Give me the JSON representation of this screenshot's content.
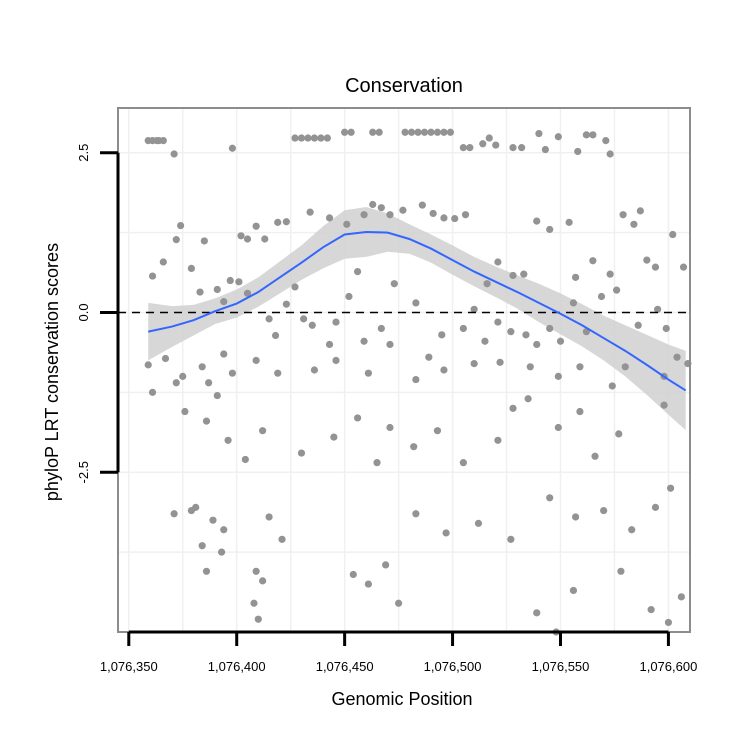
{
  "chart_data": {
    "type": "scatter",
    "title": "Conservation",
    "xlabel": "Genomic Position",
    "ylabel": "phyloP LRT conservation scores",
    "xlim": [
      1076345,
      1076610
    ],
    "ylim": [
      -5.0,
      3.2
    ],
    "x_ticks": [
      {
        "value": 1076350,
        "label": "1,076,350"
      },
      {
        "value": 1076400,
        "label": "1,076,400"
      },
      {
        "value": 1076450,
        "label": "1,076,450"
      },
      {
        "value": 1076500,
        "label": "1,076,500"
      },
      {
        "value": 1076550,
        "label": "1,076,550"
      },
      {
        "value": 1076600,
        "label": "1,076,600"
      }
    ],
    "y_ticks": [
      {
        "value": -2.5,
        "label": "-2.5"
      },
      {
        "value": 0.0,
        "label": "0.0"
      },
      {
        "value": 2.5,
        "label": "2.5"
      }
    ],
    "grid": true,
    "reference_line": {
      "y": 0,
      "style": "dashed"
    },
    "colors": {
      "points": "#939393",
      "smooth_line": "#3366ff",
      "confidence_band": "#d0d0d0",
      "panel_border": "#8c8c8c",
      "grid": "#f0f0f0"
    },
    "points": [
      [
        1076359,
        2.69
      ],
      [
        1076361,
        2.69
      ],
      [
        1076363,
        2.69
      ],
      [
        1076364,
        2.69
      ],
      [
        1076366,
        2.69
      ],
      [
        1076371,
        2.48
      ],
      [
        1076398,
        2.57
      ],
      [
        1076427,
        2.73
      ],
      [
        1076430,
        2.73
      ],
      [
        1076433,
        2.73
      ],
      [
        1076436,
        2.73
      ],
      [
        1076439,
        2.73
      ],
      [
        1076442,
        2.73
      ],
      [
        1076450,
        2.82
      ],
      [
        1076453,
        2.82
      ],
      [
        1076463,
        2.82
      ],
      [
        1076466,
        2.82
      ],
      [
        1076478,
        2.82
      ],
      [
        1076481,
        2.82
      ],
      [
        1076484,
        2.82
      ],
      [
        1076487,
        2.82
      ],
      [
        1076490,
        2.82
      ],
      [
        1076493,
        2.82
      ],
      [
        1076496,
        2.82
      ],
      [
        1076499,
        2.82
      ],
      [
        1076517,
        2.73
      ],
      [
        1076505,
        2.58
      ],
      [
        1076508,
        2.58
      ],
      [
        1076514,
        2.64
      ],
      [
        1076520,
        2.62
      ],
      [
        1076528,
        2.58
      ],
      [
        1076532,
        2.58
      ],
      [
        1076540,
        2.8
      ],
      [
        1076549,
        2.75
      ],
      [
        1076571,
        2.69
      ],
      [
        1076573,
        2.48
      ],
      [
        1076558,
        2.52
      ],
      [
        1076562,
        2.78
      ],
      [
        1076565,
        2.78
      ],
      [
        1076543,
        2.55
      ],
      [
        1076361,
        0.57
      ],
      [
        1076366,
        0.79
      ],
      [
        1076372,
        1.14
      ],
      [
        1076374,
        1.36
      ],
      [
        1076379,
        0.69
      ],
      [
        1076385,
        1.12
      ],
      [
        1076397,
        0.5
      ],
      [
        1076402,
        1.2
      ],
      [
        1076405,
        1.15
      ],
      [
        1076409,
        1.35
      ],
      [
        1076413,
        1.15
      ],
      [
        1076419,
        1.41
      ],
      [
        1076423,
        1.42
      ],
      [
        1076427,
        0.4
      ],
      [
        1076434,
        1.57
      ],
      [
        1076443,
        1.48
      ],
      [
        1076451,
        1.38
      ],
      [
        1076456,
        0.64
      ],
      [
        1076459,
        1.53
      ],
      [
        1076463,
        1.69
      ],
      [
        1076467,
        1.64
      ],
      [
        1076471,
        1.53
      ],
      [
        1076477,
        1.6
      ],
      [
        1076486,
        1.68
      ],
      [
        1076491,
        1.55
      ],
      [
        1076496,
        1.48
      ],
      [
        1076501,
        1.47
      ],
      [
        1076506,
        1.53
      ],
      [
        1076516,
        0.45
      ],
      [
        1076521,
        0.79
      ],
      [
        1076528,
        0.58
      ],
      [
        1076533,
        0.6
      ],
      [
        1076539,
        1.43
      ],
      [
        1076545,
        1.3
      ],
      [
        1076554,
        1.41
      ],
      [
        1076557,
        0.55
      ],
      [
        1076565,
        0.81
      ],
      [
        1076573,
        0.6
      ],
      [
        1076579,
        1.53
      ],
      [
        1076584,
        1.38
      ],
      [
        1076590,
        0.82
      ],
      [
        1076594,
        0.71
      ],
      [
        1076602,
        1.22
      ],
      [
        1076607,
        0.71
      ],
      [
        1076587,
        1.59
      ],
      [
        1076383,
        0.32
      ],
      [
        1076391,
        0.36
      ],
      [
        1076394,
        0.17
      ],
      [
        1076401,
        0.48
      ],
      [
        1076405,
        0.3
      ],
      [
        1076415,
        -0.1
      ],
      [
        1076418,
        -0.36
      ],
      [
        1076423,
        0.13
      ],
      [
        1076431,
        -0.1
      ],
      [
        1076435,
        -0.2
      ],
      [
        1076446,
        -0.15
      ],
      [
        1076452,
        0.25
      ],
      [
        1076459,
        -0.45
      ],
      [
        1076467,
        -0.25
      ],
      [
        1076473,
        0.45
      ],
      [
        1076483,
        0.15
      ],
      [
        1076489,
        -0.7
      ],
      [
        1076495,
        -0.35
      ],
      [
        1076505,
        -0.25
      ],
      [
        1076510,
        0.05
      ],
      [
        1076515,
        -0.45
      ],
      [
        1076521,
        -0.15
      ],
      [
        1076527,
        -0.3
      ],
      [
        1076534,
        -0.35
      ],
      [
        1076539,
        -0.5
      ],
      [
        1076545,
        -0.25
      ],
      [
        1076550,
        -0.45
      ],
      [
        1076556,
        0.15
      ],
      [
        1076562,
        -0.3
      ],
      [
        1076569,
        0.25
      ],
      [
        1076576,
        0.35
      ],
      [
        1076580,
        -0.85
      ],
      [
        1076586,
        -0.2
      ],
      [
        1076595,
        0.05
      ],
      [
        1076599,
        -0.25
      ],
      [
        1076604,
        -0.7
      ],
      [
        1076609,
        -0.8
      ],
      [
        1076359,
        -0.82
      ],
      [
        1076361,
        -1.25
      ],
      [
        1076367,
        -0.72
      ],
      [
        1076372,
        -1.1
      ],
      [
        1076375,
        -1.0
      ],
      [
        1076384,
        -0.85
      ],
      [
        1076387,
        -1.1
      ],
      [
        1076391,
        -1.3
      ],
      [
        1076394,
        -0.65
      ],
      [
        1076398,
        -0.95
      ],
      [
        1076409,
        -0.75
      ],
      [
        1076419,
        -0.95
      ],
      [
        1076436,
        -0.9
      ],
      [
        1076443,
        -0.5
      ],
      [
        1076446,
        -0.75
      ],
      [
        1076461,
        -0.95
      ],
      [
        1076471,
        -0.5
      ],
      [
        1076483,
        -1.05
      ],
      [
        1076496,
        -0.9
      ],
      [
        1076510,
        -0.8
      ],
      [
        1076522,
        -0.78
      ],
      [
        1076536,
        -0.85
      ],
      [
        1076549,
        -1.0
      ],
      [
        1076559,
        -0.85
      ],
      [
        1076574,
        -1.15
      ],
      [
        1076598,
        -1.0
      ],
      [
        1076376,
        -1.55
      ],
      [
        1076386,
        -1.7
      ],
      [
        1076396,
        -2.0
      ],
      [
        1076404,
        -2.3
      ],
      [
        1076412,
        -1.85
      ],
      [
        1076430,
        -2.2
      ],
      [
        1076445,
        -1.95
      ],
      [
        1076456,
        -1.65
      ],
      [
        1076465,
        -2.35
      ],
      [
        1076471,
        -1.8
      ],
      [
        1076482,
        -2.1
      ],
      [
        1076493,
        -1.85
      ],
      [
        1076505,
        -2.35
      ],
      [
        1076521,
        -2.0
      ],
      [
        1076528,
        -1.5
      ],
      [
        1076535,
        -1.35
      ],
      [
        1076549,
        -1.8
      ],
      [
        1076559,
        -1.55
      ],
      [
        1076566,
        -2.25
      ],
      [
        1076577,
        -1.9
      ],
      [
        1076598,
        -1.45
      ],
      [
        1076371,
        -3.15
      ],
      [
        1076379,
        -3.1
      ],
      [
        1076381,
        -3.05
      ],
      [
        1076384,
        -3.65
      ],
      [
        1076389,
        -3.25
      ],
      [
        1076394,
        -3.4
      ],
      [
        1076409,
        -4.05
      ],
      [
        1076412,
        -4.2
      ],
      [
        1076415,
        -3.2
      ],
      [
        1076421,
        -3.55
      ],
      [
        1076454,
        -4.1
      ],
      [
        1076469,
        -3.95
      ],
      [
        1076483,
        -3.15
      ],
      [
        1076497,
        -3.45
      ],
      [
        1076512,
        -3.3
      ],
      [
        1076527,
        -3.55
      ],
      [
        1076545,
        -2.9
      ],
      [
        1076557,
        -3.2
      ],
      [
        1076570,
        -3.1
      ],
      [
        1076583,
        -3.4
      ],
      [
        1076594,
        -3.05
      ],
      [
        1076601,
        -2.75
      ],
      [
        1076386,
        -4.05
      ],
      [
        1076393,
        -3.75
      ],
      [
        1076408,
        -4.55
      ],
      [
        1076461,
        -4.25
      ],
      [
        1076475,
        -4.55
      ],
      [
        1076539,
        -4.7
      ],
      [
        1076556,
        -4.35
      ],
      [
        1076578,
        -4.05
      ],
      [
        1076592,
        -4.65
      ],
      [
        1076600,
        -4.85
      ],
      [
        1076606,
        -4.45
      ],
      [
        1076410,
        -4.8
      ],
      [
        1076548,
        -5.0
      ]
    ],
    "smooth_line": [
      [
        1076359,
        -0.3
      ],
      [
        1076370,
        -0.22
      ],
      [
        1076380,
        -0.12
      ],
      [
        1076390,
        0.02
      ],
      [
        1076400,
        0.14
      ],
      [
        1076410,
        0.32
      ],
      [
        1076420,
        0.55
      ],
      [
        1076430,
        0.78
      ],
      [
        1076440,
        1.02
      ],
      [
        1076450,
        1.22
      ],
      [
        1076460,
        1.26
      ],
      [
        1076470,
        1.25
      ],
      [
        1076480,
        1.15
      ],
      [
        1076490,
        1.0
      ],
      [
        1076500,
        0.82
      ],
      [
        1076510,
        0.64
      ],
      [
        1076520,
        0.48
      ],
      [
        1076530,
        0.32
      ],
      [
        1076540,
        0.15
      ],
      [
        1076550,
        -0.02
      ],
      [
        1076560,
        -0.2
      ],
      [
        1076570,
        -0.4
      ],
      [
        1076580,
        -0.6
      ],
      [
        1076590,
        -0.82
      ],
      [
        1076600,
        -1.05
      ],
      [
        1076608,
        -1.22
      ]
    ],
    "band_upper": [
      [
        1076359,
        0.15
      ],
      [
        1076370,
        0.1
      ],
      [
        1076380,
        0.12
      ],
      [
        1076390,
        0.22
      ],
      [
        1076400,
        0.36
      ],
      [
        1076410,
        0.55
      ],
      [
        1076420,
        0.8
      ],
      [
        1076430,
        1.05
      ],
      [
        1076440,
        1.35
      ],
      [
        1076450,
        1.6
      ],
      [
        1076460,
        1.65
      ],
      [
        1076470,
        1.55
      ],
      [
        1076480,
        1.38
      ],
      [
        1076490,
        1.22
      ],
      [
        1076500,
        1.05
      ],
      [
        1076510,
        0.87
      ],
      [
        1076520,
        0.72
      ],
      [
        1076530,
        0.58
      ],
      [
        1076540,
        0.45
      ],
      [
        1076550,
        0.3
      ],
      [
        1076560,
        0.13
      ],
      [
        1076570,
        -0.05
      ],
      [
        1076580,
        -0.2
      ],
      [
        1076590,
        -0.35
      ],
      [
        1076600,
        -0.5
      ],
      [
        1076608,
        -0.6
      ]
    ],
    "band_lower": [
      [
        1076359,
        -0.75
      ],
      [
        1076370,
        -0.54
      ],
      [
        1076380,
        -0.36
      ],
      [
        1076390,
        -0.18
      ],
      [
        1076400,
        -0.08
      ],
      [
        1076410,
        0.09
      ],
      [
        1076420,
        0.3
      ],
      [
        1076430,
        0.51
      ],
      [
        1076440,
        0.69
      ],
      [
        1076450,
        0.84
      ],
      [
        1076460,
        0.87
      ],
      [
        1076470,
        0.95
      ],
      [
        1076480,
        0.92
      ],
      [
        1076490,
        0.78
      ],
      [
        1076500,
        0.59
      ],
      [
        1076510,
        0.41
      ],
      [
        1076520,
        0.24
      ],
      [
        1076530,
        0.06
      ],
      [
        1076540,
        -0.15
      ],
      [
        1076550,
        -0.34
      ],
      [
        1076560,
        -0.53
      ],
      [
        1076570,
        -0.75
      ],
      [
        1076580,
        -1.0
      ],
      [
        1076590,
        -1.29
      ],
      [
        1076600,
        -1.6
      ],
      [
        1076608,
        -1.84
      ]
    ]
  }
}
